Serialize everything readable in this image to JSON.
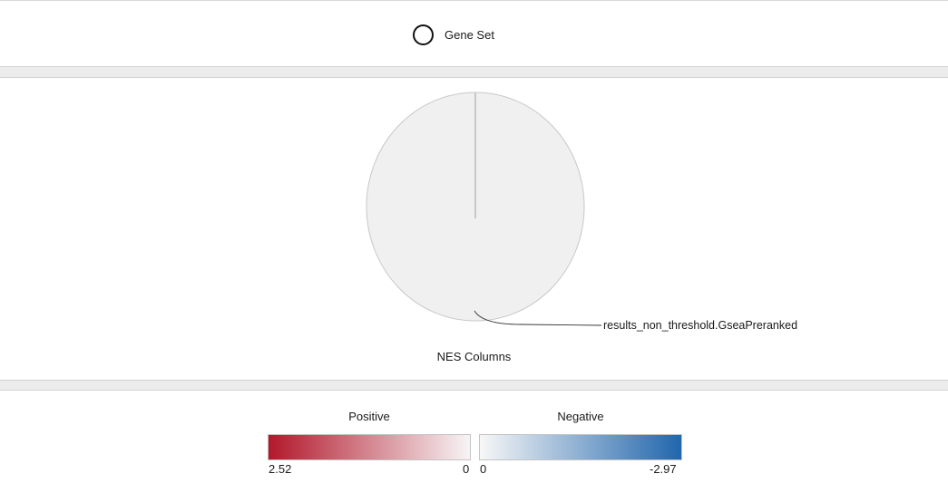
{
  "legend": {
    "shape_icon": "circle-outline-icon",
    "label": "Gene Set"
  },
  "chart_data": {
    "type": "pie",
    "title": "NES Columns",
    "slices": [
      {
        "label": "results_non_threshold.GseaPreranked",
        "value": 1
      }
    ],
    "slice_color": "#f0f0f0",
    "stroke_color": "#c8c8c8"
  },
  "color_scale": {
    "positive": {
      "title": "Positive",
      "min_label": "2.52",
      "max_label": "0",
      "from_color": "#b2182b",
      "to_color": "#f7f4f5"
    },
    "negative": {
      "title": "Negative",
      "min_label": "0",
      "max_label": "-2.97",
      "from_color": "#f7f7f7",
      "to_color": "#2166ac"
    }
  }
}
